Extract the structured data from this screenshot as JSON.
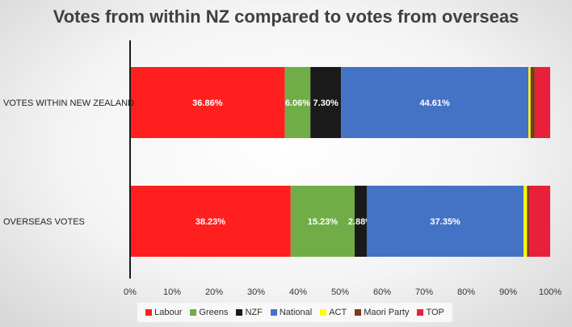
{
  "chart_data": {
    "type": "bar",
    "orientation": "horizontal",
    "stacked": "percent",
    "title": "Votes from within NZ compared to votes from overseas",
    "categories": [
      "VOTES WITHIN NEW ZEALAND",
      "OVERSEAS VOTES"
    ],
    "series": [
      {
        "name": "Labour",
        "color": "#ff1f1f",
        "values": [
          36.86,
          38.23
        ],
        "labels": [
          "36.86%",
          "38.23%"
        ]
      },
      {
        "name": "Greens",
        "color": "#70ad47",
        "values": [
          6.06,
          15.23
        ],
        "labels": [
          "6.06%",
          "15.23%"
        ]
      },
      {
        "name": "NZF",
        "color": "#1a1a1a",
        "values": [
          7.3,
          2.88
        ],
        "labels": [
          "7.30%",
          "2.88%"
        ]
      },
      {
        "name": "National",
        "color": "#4472c4",
        "values": [
          44.61,
          37.35
        ],
        "labels": [
          "44.61%",
          "37.35%"
        ]
      },
      {
        "name": "ACT",
        "color": "#ffff00",
        "values": [
          0.5,
          0.8
        ],
        "labels": [
          "",
          ""
        ]
      },
      {
        "name": "Maori Party",
        "color": "#7b3a1a",
        "values": [
          1.0,
          0.5
        ],
        "labels": [
          "",
          ""
        ]
      },
      {
        "name": "TOP",
        "color": "#e8203a",
        "values": [
          3.67,
          5.01
        ],
        "labels": [
          "",
          ""
        ]
      }
    ],
    "xlim": [
      0,
      100
    ],
    "xticks": [
      "0%",
      "10%",
      "20%",
      "30%",
      "40%",
      "50%",
      "60%",
      "70%",
      "80%",
      "90%",
      "100%"
    ],
    "legend_position": "bottom",
    "grid": false
  }
}
